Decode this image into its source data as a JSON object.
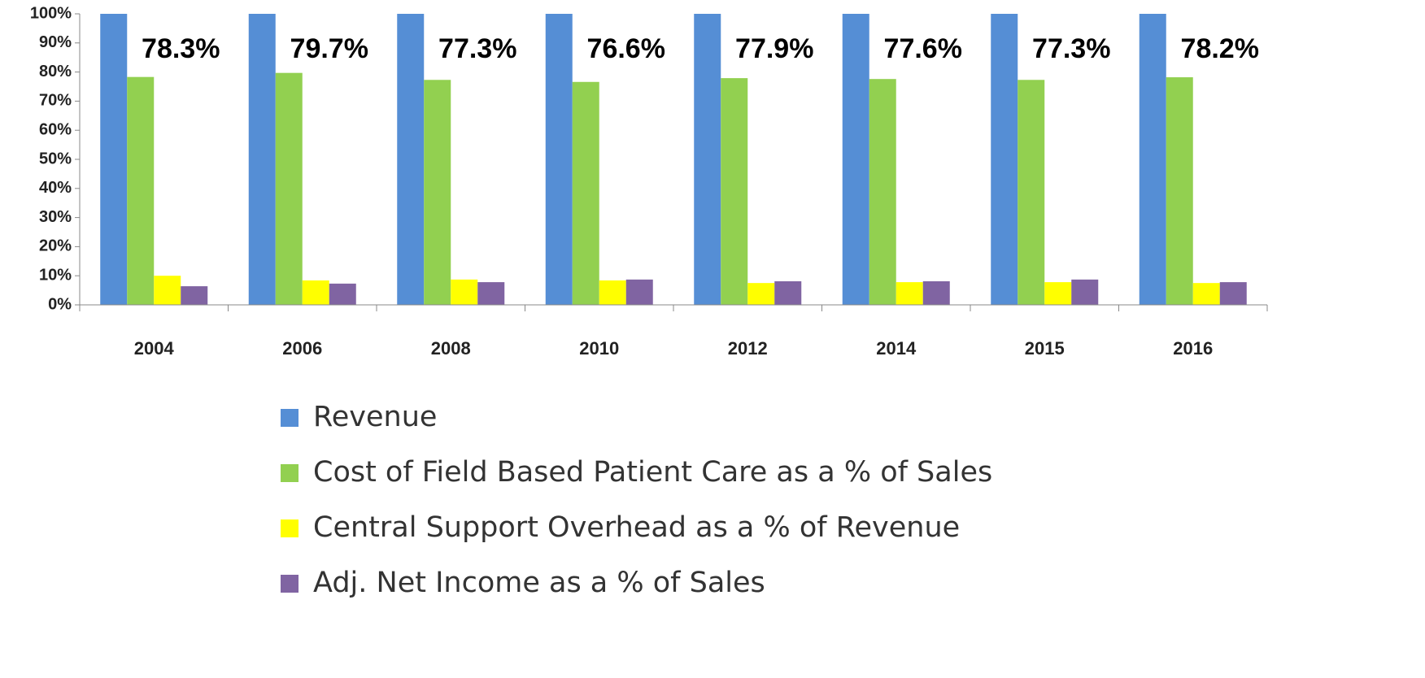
{
  "chart_data": {
    "type": "bar",
    "categories": [
      "2004",
      "2006",
      "2008",
      "2010",
      "2012",
      "2014",
      "2015",
      "2016"
    ],
    "series": [
      {
        "name": "Revenue",
        "color": "#558ed5",
        "values": [
          100,
          100,
          100,
          100,
          100,
          100,
          100,
          100
        ]
      },
      {
        "name": "Cost of Field Based Patient Care as a % of Sales",
        "color": "#92d050",
        "values": [
          78.3,
          79.7,
          77.3,
          76.6,
          77.9,
          77.6,
          77.3,
          78.2
        ],
        "value_labels": [
          "78.3%",
          "79.7%",
          "77.3%",
          "76.6%",
          "77.9%",
          "77.6%",
          "77.3%",
          "78.2%"
        ]
      },
      {
        "name": "Central Support Overhead as a % of Revenue",
        "color": "#ffff00",
        "values": [
          10.0,
          8.4,
          8.7,
          8.4,
          7.5,
          7.8,
          7.8,
          7.5
        ]
      },
      {
        "name": "Adj. Net Income as a % of Sales",
        "color": "#8064a2",
        "values": [
          6.4,
          7.3,
          7.8,
          8.7,
          8.1,
          8.1,
          8.7,
          7.8
        ]
      }
    ],
    "ylim": [
      0,
      100
    ],
    "yticks": [
      {
        "value": 0,
        "label": "0%"
      },
      {
        "value": 10,
        "label": "10%"
      },
      {
        "value": 20,
        "label": "20%"
      },
      {
        "value": 30,
        "label": "30%"
      },
      {
        "value": 40,
        "label": "40%"
      },
      {
        "value": 50,
        "label": "50%"
      },
      {
        "value": 60,
        "label": "60%"
      },
      {
        "value": 70,
        "label": "70%"
      },
      {
        "value": 80,
        "label": "80%"
      },
      {
        "value": 90,
        "label": "90%"
      },
      {
        "value": 100,
        "label": "100%"
      }
    ],
    "legend": "bottom"
  }
}
